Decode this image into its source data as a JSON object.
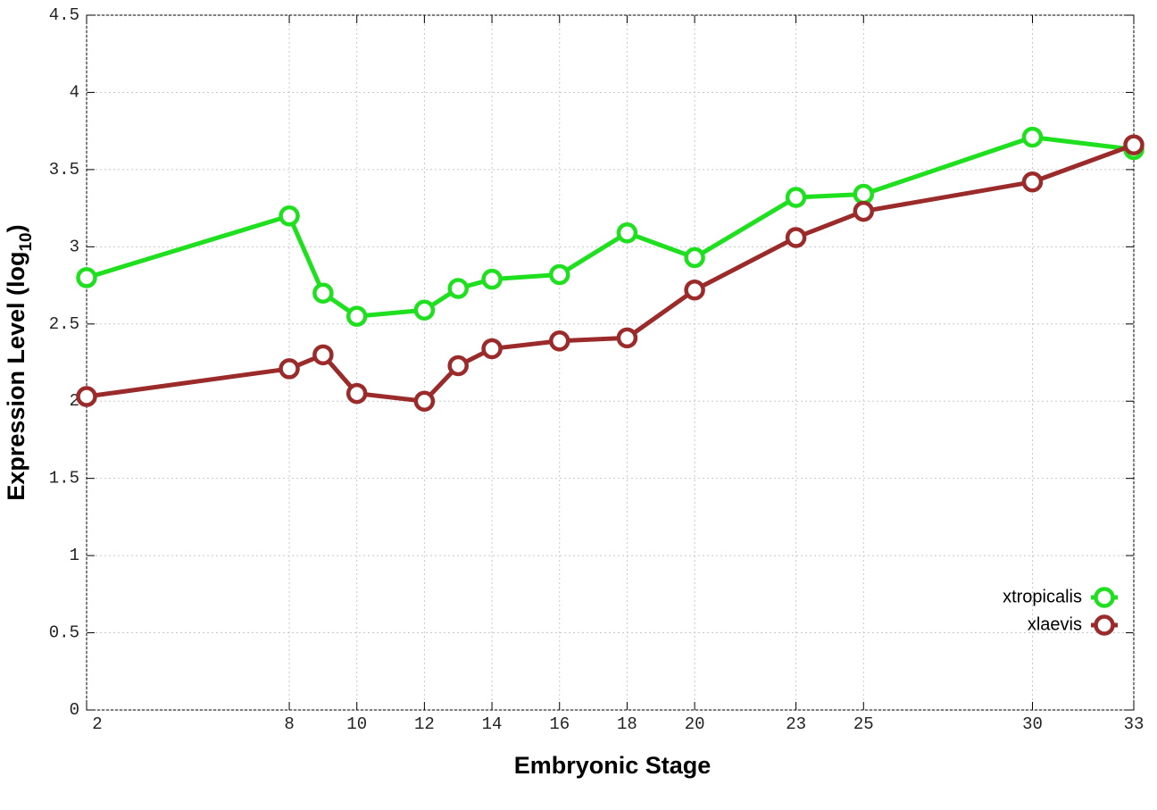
{
  "chart_data": {
    "type": "line",
    "x_label": "Embryonic Stage",
    "y_label": {
      "text": "Expression Level (log",
      "subscript": "10",
      "suffix": ")"
    },
    "x": [
      2,
      8,
      9,
      10,
      12,
      13,
      14,
      16,
      18,
      20,
      23,
      25,
      30,
      33
    ],
    "series": [
      {
        "name": "xtropicalis",
        "color": "#1ee01e",
        "values": [
          2.8,
          3.2,
          2.7,
          2.55,
          2.59,
          2.73,
          2.79,
          2.82,
          3.09,
          2.93,
          3.32,
          3.34,
          3.71,
          3.63
        ]
      },
      {
        "name": "xlaevis",
        "color": "#9b2a2a",
        "values": [
          2.03,
          2.21,
          2.3,
          2.05,
          2.0,
          2.23,
          2.34,
          2.39,
          2.41,
          2.72,
          3.06,
          3.23,
          3.42,
          3.66
        ]
      }
    ],
    "xlim": [
      2,
      33
    ],
    "xticks": [
      2,
      8,
      10,
      12,
      14,
      16,
      18,
      20,
      23,
      25,
      30,
      33
    ],
    "ylim": [
      0,
      4.5
    ],
    "yticks": [
      0,
      0.5,
      1,
      1.5,
      2,
      2.5,
      3,
      3.5,
      4,
      4.5
    ],
    "grid": true,
    "legend": "bottom-right"
  }
}
